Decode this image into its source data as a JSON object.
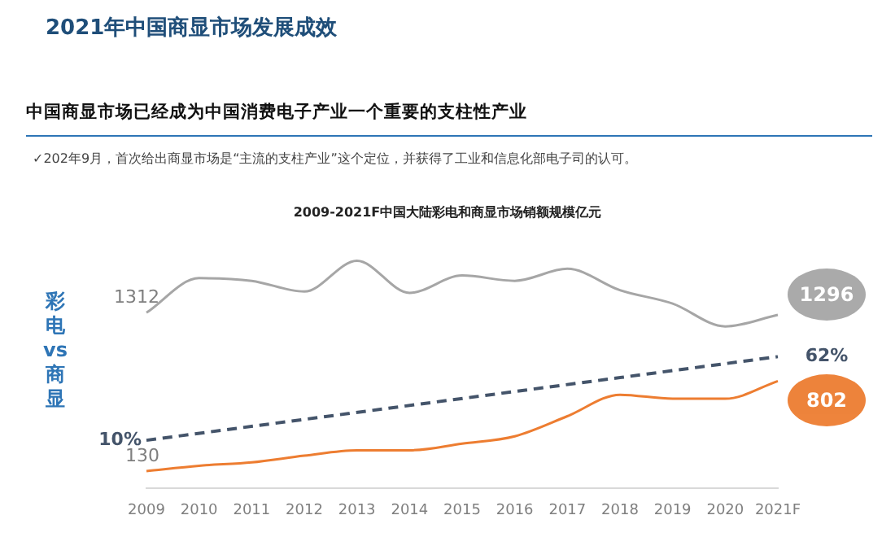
{
  "chart_data": {
    "type": "line",
    "title": "2021年中国商显市场发展成效",
    "subtitle": "中国商显市场已经成为中国消费电子产业一个重要的支柱性产业",
    "annotations": [
      "✓202年9月，首次给出商显市场是“主流的支柱产业”这个定位，并获得了工业和信息化部电子司的认可。",
      "2009-2021F中国大陆彩电和商显市场销额规模亿元"
    ],
    "ylabel": "彩电 vs 商显",
    "grid": false,
    "legend": false,
    "marker": "none",
    "tick_labels": "x",
    "categories": [
      "2009",
      "2010",
      "2011",
      "2012",
      "2013",
      "2014",
      "2015",
      "2016",
      "2017",
      "2018",
      "2019",
      "2020",
      "2021F"
    ],
    "series": [
      {
        "color": "#a6a6a6",
        "line_style": "solid",
        "values": [
          1312,
          1570,
          1550,
          1470,
          1700,
          1460,
          1590,
          1550,
          1640,
          1480,
          1380,
          1210,
          1296
        ],
        "value_labels": [
          "1312",
          null,
          null,
          null,
          null,
          null,
          null,
          null,
          null,
          null,
          null,
          null,
          "1296"
        ]
      },
      {
        "color": "#ed7d31",
        "line_style": "solid",
        "values": [
          130,
          170,
          195,
          245,
          285,
          285,
          335,
          390,
          540,
          700,
          670,
          670,
          802
        ],
        "value_labels": [
          "130",
          null,
          null,
          null,
          null,
          null,
          null,
          null,
          null,
          null,
          null,
          null,
          "802"
        ]
      },
      {
        "color": "#44546a",
        "line_style": "dashed",
        "axis": "y2",
        "values": [
          10,
          null,
          null,
          null,
          null,
          null,
          null,
          null,
          null,
          null,
          null,
          null,
          62
        ],
        "value_labels": [
          "10%",
          null,
          null,
          null,
          null,
          null,
          null,
          null,
          null,
          null,
          null,
          null,
          "62%"
        ]
      }
    ]
  }
}
